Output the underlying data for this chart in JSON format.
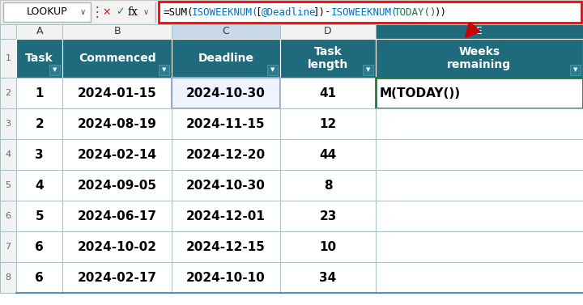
{
  "name_box": "LOOKUP",
  "formula_segments": [
    [
      "=SUM(",
      "#000000"
    ],
    [
      "ISOWEEKNUM(",
      "#0070C0"
    ],
    [
      "[",
      "#000000"
    ],
    [
      "@Deadline",
      "#0070C0"
    ],
    [
      "])",
      "#000000"
    ],
    [
      "-",
      "#000000"
    ],
    [
      "ISOWEEKNUM(",
      "#0070C0"
    ],
    [
      "TODAY()",
      "#217346"
    ],
    [
      "))",
      "#000000"
    ]
  ],
  "col_letters": [
    "A",
    "B",
    "C",
    "D",
    "E"
  ],
  "col_props": [
    0.082,
    0.192,
    0.192,
    0.168,
    0.366
  ],
  "headers": [
    "Task",
    "Commenced",
    "Deadline",
    "Task length",
    "Weeks remaining"
  ],
  "rows": [
    [
      "1",
      "2024-01-15",
      "2024-10-30",
      "41",
      "M(TODAY())"
    ],
    [
      "2",
      "2024-08-19",
      "2024-11-15",
      "12",
      ""
    ],
    [
      "3",
      "2024-02-14",
      "2024-12-20",
      "44",
      ""
    ],
    [
      "4",
      "2024-09-05",
      "2024-10-30",
      "8",
      ""
    ],
    [
      "5",
      "2024-06-17",
      "2024-12-01",
      "23",
      ""
    ],
    [
      "6",
      "2024-10-02",
      "2024-12-15",
      "10",
      ""
    ],
    [
      "6",
      "2024-02-17",
      "2024-10-10",
      "34",
      ""
    ]
  ],
  "header_bg": "#1F6B7C",
  "header_text_color": "#FFFFFF",
  "grid_color": "#A8BFC4",
  "top_bar_bg": "#F2F2F2",
  "fig_bg": "#FFFFFF",
  "row_num_bg": "#F2F2F2",
  "col_header_bg": "#F2F2F2",
  "col_header_e_bg": "#1F6B7C",
  "col_header_c_bg": "#C8D8E8",
  "col_header_e_tc": "#FFFFFF",
  "selected_c2_bg": "#EEF3FF",
  "selected_c2_border": "#8AAAD4",
  "selected_e2_border": "#1F7A3C",
  "arrow_color": "#CC0000",
  "formula_border_color": "#FF0000",
  "cell_font_size": 11,
  "header_font_size": 10
}
